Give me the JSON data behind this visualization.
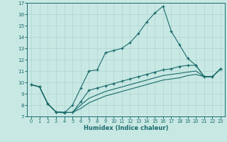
{
  "xlabel": "Humidex (Indice chaleur)",
  "xlim": [
    -0.5,
    23.5
  ],
  "ylim": [
    7,
    17
  ],
  "xticks": [
    0,
    1,
    2,
    3,
    4,
    5,
    6,
    7,
    8,
    9,
    10,
    11,
    12,
    13,
    14,
    15,
    16,
    17,
    18,
    19,
    20,
    21,
    22,
    23
  ],
  "yticks": [
    7,
    8,
    9,
    10,
    11,
    12,
    13,
    14,
    15,
    16,
    17
  ],
  "bg_color": "#c8e8e4",
  "line_color": "#1a6b6b",
  "grid_color": "#b0d4d0",
  "lines": [
    {
      "x": [
        0,
        1,
        2,
        3,
        4,
        5,
        6,
        7,
        8,
        9,
        10,
        11,
        12,
        13,
        14,
        15,
        16,
        17,
        18,
        19,
        20,
        21,
        22,
        23
      ],
      "y": [
        9.8,
        9.6,
        8.1,
        7.4,
        7.3,
        8.0,
        9.5,
        11.0,
        11.1,
        12.6,
        12.8,
        13.0,
        13.5,
        14.3,
        15.3,
        16.1,
        16.7,
        14.5,
        13.3,
        12.1,
        11.5,
        10.5,
        10.5,
        11.2
      ],
      "marker": true
    },
    {
      "x": [
        0,
        1,
        2,
        3,
        4,
        5,
        6,
        7,
        8,
        9,
        10,
        11,
        12,
        13,
        14,
        15,
        16,
        17,
        18,
        19,
        20,
        21,
        22,
        23
      ],
      "y": [
        9.8,
        9.6,
        8.1,
        7.4,
        7.35,
        7.35,
        8.3,
        9.3,
        9.5,
        9.7,
        9.9,
        10.1,
        10.3,
        10.5,
        10.7,
        10.9,
        11.1,
        11.2,
        11.4,
        11.5,
        11.5,
        10.5,
        10.5,
        11.2
      ],
      "marker": true
    },
    {
      "x": [
        0,
        1,
        2,
        3,
        4,
        5,
        6,
        7,
        8,
        9,
        10,
        11,
        12,
        13,
        14,
        15,
        16,
        17,
        18,
        19,
        20,
        21,
        22,
        23
      ],
      "y": [
        9.8,
        9.6,
        8.1,
        7.4,
        7.35,
        7.35,
        8.0,
        8.6,
        8.9,
        9.2,
        9.4,
        9.6,
        9.8,
        10.0,
        10.2,
        10.4,
        10.6,
        10.7,
        10.8,
        10.9,
        11.0,
        10.5,
        10.5,
        11.2
      ],
      "marker": false
    },
    {
      "x": [
        0,
        1,
        2,
        3,
        4,
        5,
        6,
        7,
        8,
        9,
        10,
        11,
        12,
        13,
        14,
        15,
        16,
        17,
        18,
        19,
        20,
        21,
        22,
        23
      ],
      "y": [
        9.8,
        9.6,
        8.1,
        7.4,
        7.35,
        7.35,
        7.7,
        8.2,
        8.5,
        8.8,
        9.0,
        9.2,
        9.4,
        9.6,
        9.8,
        10.0,
        10.2,
        10.3,
        10.4,
        10.6,
        10.7,
        10.5,
        10.5,
        11.2
      ],
      "marker": false
    }
  ]
}
